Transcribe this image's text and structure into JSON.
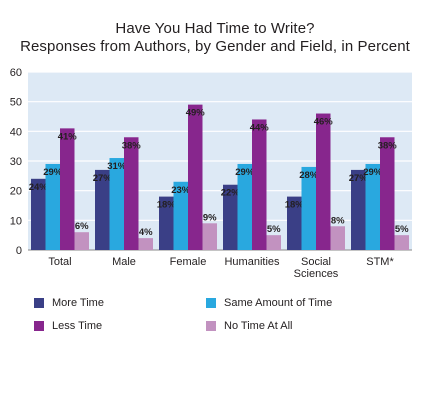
{
  "chart_data": {
    "type": "bar",
    "title": "Have You Had Time to Write?",
    "subtitle": "Responses from Authors, by Gender and Field, in Percent",
    "categories": [
      "Total",
      "Male",
      "Female",
      "Humanities",
      "Social\nSciences",
      "STM*"
    ],
    "series": [
      {
        "name": "More Time",
        "color": "#3a3f86",
        "values": [
          24,
          27,
          18,
          22,
          18,
          27
        ]
      },
      {
        "name": "Same Amount of Time",
        "color": "#29a8df",
        "values": [
          29,
          31,
          23,
          29,
          28,
          29
        ]
      },
      {
        "name": "Less Time",
        "color": "#87268d",
        "values": [
          41,
          38,
          49,
          44,
          46,
          38
        ]
      },
      {
        "name": "No Time At All",
        "color": "#c292c0",
        "values": [
          6,
          4,
          9,
          5,
          8,
          5
        ]
      }
    ],
    "y_ticks": [
      0,
      10,
      20,
      30,
      40,
      50,
      60
    ],
    "ylim": [
      0,
      60
    ],
    "grid": true,
    "plot_background": "#dde9f5",
    "legend_position": "bottom",
    "value_suffix": "%"
  }
}
